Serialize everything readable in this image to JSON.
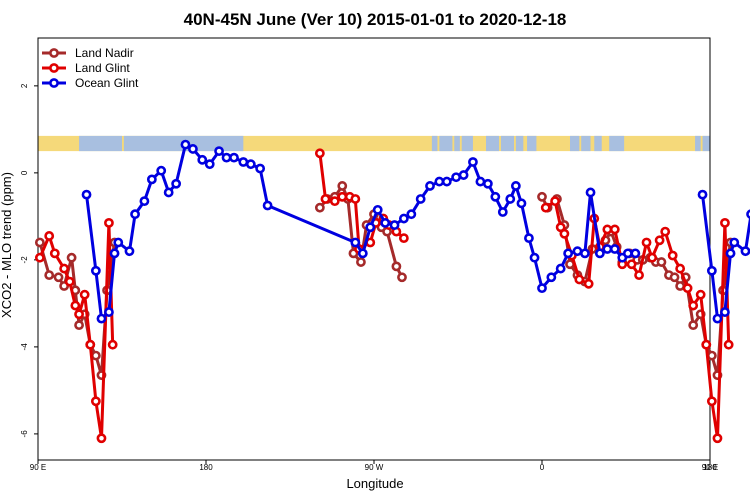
{
  "chart_data": {
    "type": "line",
    "title": "40N-45N June (Ver 10)   2015-01-01 to 2020-12-18",
    "xlabel": "Longitude",
    "ylabel": "XCO2 - MLO trend (ppm)",
    "xlim": [
      90,
      450
    ],
    "ylim": [
      -6.6,
      3.1
    ],
    "xticks": [
      {
        "value": 90,
        "label": "90 E"
      },
      {
        "value": 180,
        "label": "180"
      },
      {
        "value": 270,
        "label": "90 W"
      },
      {
        "value": 360,
        "label": "0"
      },
      {
        "value": 450,
        "label": "90 E"
      },
      {
        "value": 540,
        "label": "180"
      }
    ],
    "yticks": [
      {
        "value": -6,
        "label": "-6"
      },
      {
        "value": -4,
        "label": "-4"
      },
      {
        "value": -2,
        "label": "-2"
      },
      {
        "value": 0,
        "label": "0"
      },
      {
        "value": 2,
        "label": "2"
      }
    ],
    "legend_position": "top-left",
    "land_ocean_strip": {
      "land_color": "#f5d97a",
      "ocean_color": "#a8bfe0",
      "y_range": [
        0.5,
        0.85
      ]
    },
    "series": [
      {
        "name": "Land Nadir",
        "color": "#a52a2a",
        "segments": [
          [
            [
              91,
              -1.6
            ],
            [
              96,
              -2.35
            ],
            [
              101,
              -2.4
            ],
            [
              104,
              -2.6
            ],
            [
              108,
              -1.95
            ],
            [
              110,
              -2.7
            ],
            [
              112,
              -3.5
            ],
            [
              115,
              -3.25
            ],
            [
              118,
              -3.95
            ],
            [
              121,
              -4.2
            ],
            [
              124,
              -4.65
            ],
            [
              127,
              -2.7
            ],
            [
              131,
              -1.6
            ]
          ],
          [
            [
              241,
              -0.8
            ],
            [
              245,
              -0.6
            ],
            [
              249,
              -0.55
            ],
            [
              253,
              -0.3
            ],
            [
              256,
              -0.6
            ],
            [
              259,
              -1.85
            ],
            [
              263,
              -2.05
            ],
            [
              266,
              -1.2
            ],
            [
              270,
              -0.95
            ],
            [
              274,
              -1.25
            ],
            [
              277,
              -1.35
            ],
            [
              282,
              -2.15
            ],
            [
              285,
              -2.4
            ]
          ],
          [
            [
              360,
              -0.55
            ],
            [
              363,
              -0.8
            ],
            [
              368,
              -0.6
            ],
            [
              372,
              -1.2
            ],
            [
              375,
              -2.1
            ],
            [
              379,
              -2.35
            ],
            [
              383,
              -2.5
            ],
            [
              387,
              -1.75
            ],
            [
              391,
              -1.75
            ],
            [
              394,
              -1.55
            ],
            [
              397,
              -1.35
            ],
            [
              400,
              -1.7
            ],
            [
              403,
              -2.05
            ],
            [
              407,
              -1.85
            ],
            [
              411,
              -2.0
            ],
            [
              414,
              -2.0
            ],
            [
              418,
              -1.95
            ],
            [
              421,
              -2.05
            ],
            [
              424,
              -2.05
            ],
            [
              428,
              -2.35
            ],
            [
              431,
              -2.4
            ],
            [
              434,
              -2.6
            ],
            [
              437,
              -2.4
            ],
            [
              441,
              -3.5
            ],
            [
              445,
              -3.25
            ],
            [
              448,
              -3.95
            ],
            [
              451,
              -4.2
            ],
            [
              454,
              -4.65
            ],
            [
              457,
              -2.7
            ],
            [
              461,
              -1.6
            ]
          ]
        ]
      },
      {
        "name": "Land Glint",
        "color": "#e00000",
        "segments": [
          [
            [
              91,
              -1.95
            ],
            [
              96,
              -1.45
            ],
            [
              99,
              -1.85
            ],
            [
              104,
              -2.2
            ],
            [
              107,
              -2.5
            ],
            [
              110,
              -3.05
            ],
            [
              112,
              -3.25
            ],
            [
              115,
              -2.8
            ],
            [
              118,
              -3.95
            ],
            [
              121,
              -5.25
            ],
            [
              124,
              -6.1
            ],
            [
              128,
              -1.15
            ],
            [
              130,
              -3.95
            ]
          ],
          [
            [
              241,
              0.45
            ],
            [
              244,
              -0.6
            ],
            [
              249,
              -0.65
            ],
            [
              253,
              -0.55
            ],
            [
              257,
              -0.55
            ],
            [
              260,
              -0.6
            ],
            [
              262,
              -1.75
            ],
            [
              268,
              -1.6
            ],
            [
              271,
              -1.15
            ],
            [
              275,
              -1.05
            ],
            [
              278,
              -1.2
            ],
            [
              282,
              -1.35
            ],
            [
              286,
              -1.5
            ]
          ],
          [
            [
              362,
              -0.8
            ],
            [
              367,
              -0.65
            ],
            [
              370,
              -1.25
            ],
            [
              372,
              -1.4
            ],
            [
              376,
              -1.9
            ],
            [
              380,
              -2.45
            ],
            [
              385,
              -2.55
            ],
            [
              388,
              -1.05
            ],
            [
              391,
              -1.7
            ],
            [
              395,
              -1.3
            ],
            [
              399,
              -1.3
            ],
            [
              403,
              -2.1
            ],
            [
              408,
              -2.1
            ],
            [
              412,
              -2.35
            ],
            [
              416,
              -1.6
            ],
            [
              419,
              -1.95
            ],
            [
              423,
              -1.55
            ],
            [
              426,
              -1.35
            ],
            [
              430,
              -1.9
            ],
            [
              434,
              -2.2
            ],
            [
              438,
              -2.65
            ],
            [
              441,
              -3.05
            ],
            [
              445,
              -2.8
            ],
            [
              448,
              -3.95
            ],
            [
              451,
              -5.25
            ],
            [
              454,
              -6.1
            ],
            [
              458,
              -1.15
            ],
            [
              460,
              -3.95
            ]
          ]
        ]
      },
      {
        "name": "Ocean Glint",
        "color": "#0000e0",
        "segments": [
          [
            [
              116,
              -0.5
            ],
            [
              121,
              -2.25
            ],
            [
              124,
              -3.35
            ],
            [
              128,
              -3.2
            ],
            [
              131,
              -1.85
            ],
            [
              133,
              -1.6
            ],
            [
              139,
              -1.8
            ],
            [
              142,
              -0.95
            ],
            [
              147,
              -0.65
            ],
            [
              151,
              -0.15
            ],
            [
              156,
              0.05
            ],
            [
              160,
              -0.45
            ],
            [
              164,
              -0.25
            ],
            [
              169,
              0.65
            ],
            [
              173,
              0.55
            ],
            [
              178,
              0.3
            ],
            [
              182,
              0.2
            ],
            [
              187,
              0.5
            ],
            [
              191,
              0.35
            ],
            [
              195,
              0.35
            ],
            [
              200,
              0.25
            ],
            [
              204,
              0.2
            ],
            [
              209,
              0.1
            ],
            [
              213,
              -0.75
            ],
            [
              260,
              -1.6
            ],
            [
              264,
              -1.85
            ],
            [
              268,
              -1.25
            ],
            [
              272,
              -0.85
            ],
            [
              276,
              -1.15
            ],
            [
              281,
              -1.2
            ],
            [
              286,
              -1.05
            ],
            [
              290,
              -0.95
            ],
            [
              295,
              -0.6
            ],
            [
              300,
              -0.3
            ],
            [
              305,
              -0.2
            ],
            [
              309,
              -0.2
            ],
            [
              314,
              -0.1
            ],
            [
              318,
              -0.05
            ],
            [
              323,
              0.25
            ],
            [
              327,
              -0.2
            ],
            [
              331,
              -0.25
            ],
            [
              335,
              -0.55
            ],
            [
              339,
              -0.9
            ],
            [
              343,
              -0.6
            ],
            [
              346,
              -0.3
            ],
            [
              349,
              -0.7
            ],
            [
              353,
              -1.5
            ],
            [
              356,
              -1.95
            ],
            [
              360,
              -2.65
            ],
            [
              365,
              -2.4
            ],
            [
              370,
              -2.2
            ],
            [
              374,
              -1.85
            ],
            [
              379,
              -1.8
            ],
            [
              383,
              -1.85
            ],
            [
              386,
              -0.45
            ],
            [
              391,
              -1.85
            ],
            [
              395,
              -1.75
            ],
            [
              399,
              -1.75
            ],
            [
              403,
              -1.95
            ],
            [
              406,
              -1.85
            ],
            [
              410,
              -1.85
            ]
          ],
          [
            [
              446,
              -0.5
            ],
            [
              451,
              -2.25
            ],
            [
              454,
              -3.35
            ],
            [
              458,
              -3.2
            ],
            [
              461,
              -1.85
            ],
            [
              463,
              -1.6
            ],
            [
              469,
              -1.8
            ],
            [
              472,
              -0.95
            ],
            [
              477,
              -0.65
            ],
            [
              481,
              -0.15
            ],
            [
              486,
              0.05
            ],
            [
              490,
              -0.45
            ]
          ]
        ]
      }
    ]
  }
}
